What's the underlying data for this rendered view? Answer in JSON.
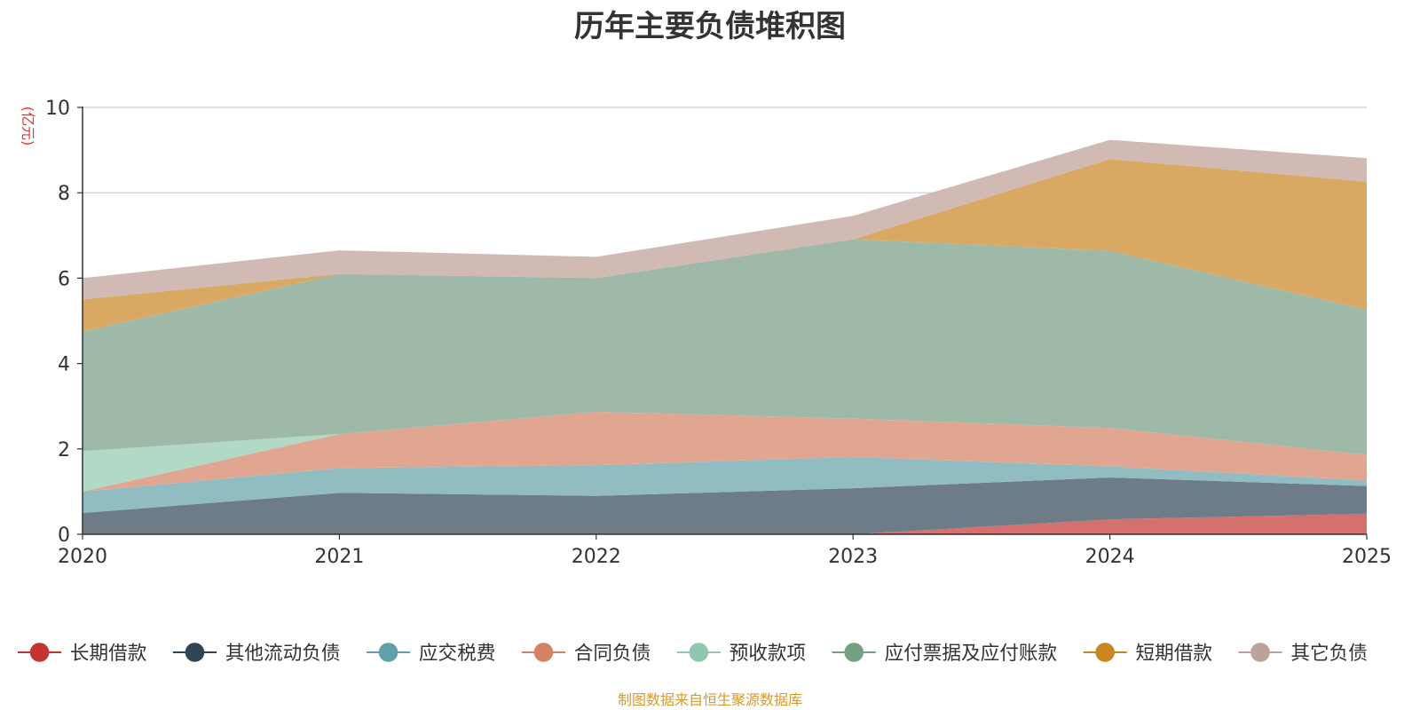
{
  "chart_data": {
    "type": "area",
    "stacked": true,
    "title": "历年主要负债堆积图",
    "ylabel": "(亿元)",
    "xlabel": "",
    "x": [
      "2020",
      "2021",
      "2022",
      "2023",
      "2024",
      "2025"
    ],
    "ylim": [
      0,
      10
    ],
    "yticks": [
      "0",
      "2",
      "4",
      "6",
      "8",
      "10"
    ],
    "grid": true,
    "legend_position": "bottom",
    "series": [
      {
        "name": "长期借款",
        "color": "#c23531",
        "fill": "#d4706d",
        "values": [
          0,
          0,
          0,
          0,
          0.35,
          0.48
        ]
      },
      {
        "name": "其他流动负债",
        "color": "#2f4554",
        "fill": "#6e7c87",
        "values": [
          0.5,
          0.97,
          0.9,
          1.08,
          0.98,
          0.65
        ]
      },
      {
        "name": "应交税费",
        "color": "#61a0a8",
        "fill": "#90bcc2",
        "values": [
          0.5,
          0.58,
          0.72,
          0.73,
          0.26,
          0.13
        ]
      },
      {
        "name": "合同负债",
        "color": "#d48265",
        "fill": "#e1a692",
        "values": [
          0,
          0.8,
          1.25,
          0.9,
          0.9,
          0.6
        ]
      },
      {
        "name": "预收款项",
        "color": "#91c7ae",
        "fill": "#b2d8c6",
        "values": [
          0.95,
          0,
          0,
          0,
          0,
          0
        ]
      },
      {
        "name": "应付票据及应付账款",
        "color": "#749f83",
        "fill": "#9eb9a8",
        "values": [
          2.8,
          3.75,
          3.13,
          4.2,
          4.15,
          3.4
        ]
      },
      {
        "name": "短期借款",
        "color": "#ca8622",
        "fill": "#d9a964",
        "values": [
          0.75,
          0,
          0,
          0,
          2.15,
          3.0
        ]
      },
      {
        "name": "其它负债",
        "color": "#bda29a",
        "fill": "#d1bab3",
        "values": [
          0.5,
          0.55,
          0.5,
          0.55,
          0.45,
          0.55
        ]
      }
    ]
  },
  "footer": {
    "source": "制图数据来自恒生聚源数据库"
  }
}
